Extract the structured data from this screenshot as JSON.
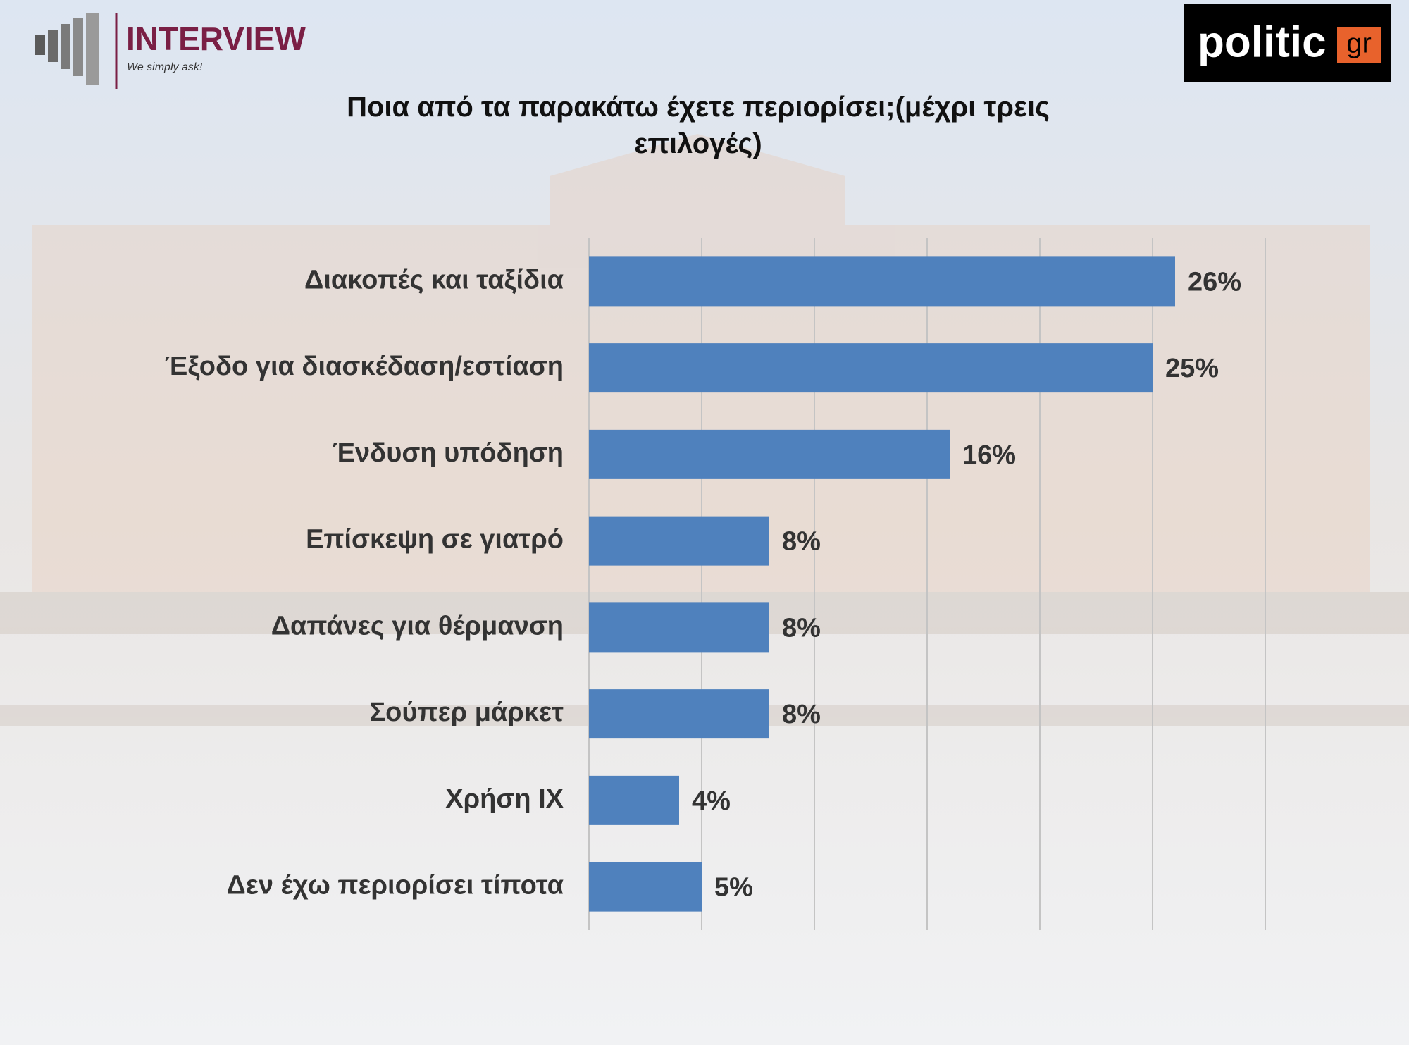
{
  "header": {
    "brand": "INTERVIEW",
    "tagline": "We simply ask!",
    "partner": "politic",
    "partner_suffix": "gr"
  },
  "chart_data": {
    "type": "bar",
    "orientation": "horizontal",
    "title": "Ποια από τα παρακάτω έχετε περιορίσει;(μέχρι τρεις επιλογές)",
    "categories": [
      "Διακοπές και ταξίδια",
      "Έξοδο για διασκέδαση/εστίαση",
      "Ένδυση υπόδηση",
      "Επίσκεψη σε γιατρό",
      "Δαπάνες για θέρμανση",
      "Σούπερ μάρκετ",
      "Χρήση ΙΧ",
      "Δεν έχω περιορίσει τίποτα"
    ],
    "values": [
      26,
      25,
      16,
      8,
      8,
      8,
      4,
      5
    ],
    "value_labels": [
      "26%",
      "25%",
      "16%",
      "8%",
      "8%",
      "8%",
      "4%",
      "5%"
    ],
    "color": "#4f81bd",
    "xlim": [
      0,
      30
    ],
    "xticks": [
      0,
      5,
      10,
      15,
      20,
      25,
      30
    ],
    "grid": true
  }
}
